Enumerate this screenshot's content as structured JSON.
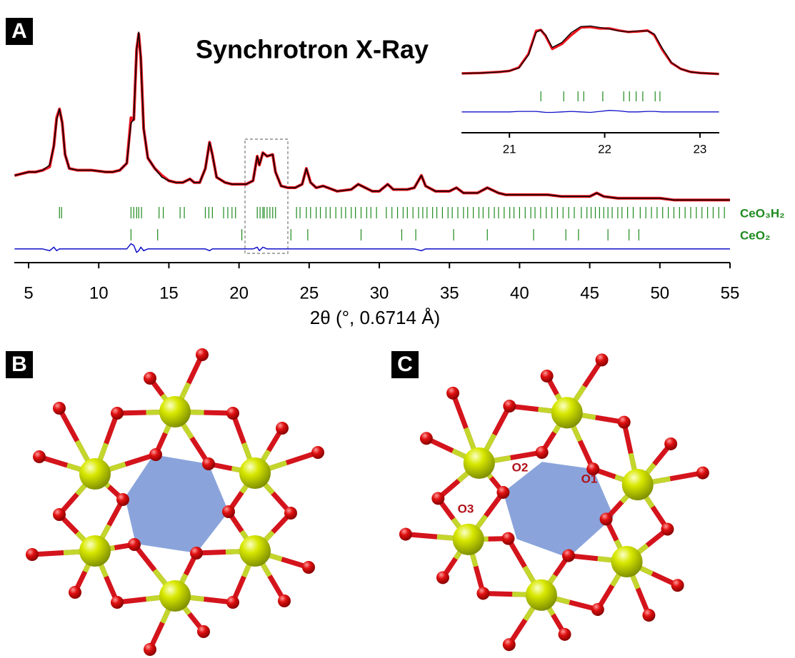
{
  "panel_labels": [
    "A",
    "B",
    "C"
  ],
  "structure_labels": [
    "O1",
    "O2",
    "O3"
  ],
  "chart_data": [
    {
      "type": "line",
      "title": "Synchrotron X-Ray",
      "x_label": "2θ (°, 0.6714 Å)",
      "xlim": [
        4,
        55
      ],
      "xticks": [
        5,
        10,
        15,
        20,
        25,
        30,
        35,
        40,
        45,
        50,
        55
      ],
      "ylim": [
        -30,
        100
      ],
      "x": [
        4,
        4.5,
        5,
        5.5,
        6,
        6.5,
        6.8,
        7.0,
        7.2,
        7.4,
        7.6,
        7.9,
        8.5,
        9.5,
        10.5,
        11,
        11.5,
        12.0,
        12.3,
        12.5,
        12.7,
        12.85,
        13.0,
        13.2,
        13.5,
        14,
        14.5,
        15,
        15.5,
        16,
        16.5,
        16.8,
        17.2,
        17.6,
        17.9,
        18.1,
        18.4,
        19,
        19.5,
        20,
        20.5,
        21,
        21.3,
        21.45,
        21.7,
        22,
        22.4,
        22.6,
        23,
        23.5,
        24,
        24.5,
        24.8,
        25.1,
        25.5,
        26,
        27,
        28,
        28.5,
        29,
        29.5,
        30,
        30.6,
        31,
        32,
        32.5,
        33,
        33.3,
        34,
        35,
        35.5,
        36,
        37,
        37.7,
        38.5,
        39,
        40,
        41,
        42,
        43,
        44,
        45,
        45.5,
        46,
        47,
        48,
        49,
        50,
        51,
        52,
        53,
        54,
        55
      ],
      "series": [
        {
          "color": "#e8141c",
          "values": [
            18,
            19,
            20,
            20,
            21,
            23,
            35,
            51,
            56,
            48,
            30,
            22,
            21,
            21,
            20,
            20,
            21,
            25,
            51,
            50,
            90,
            99,
            85,
            45,
            28,
            22,
            18,
            15,
            14,
            14,
            16,
            14,
            14,
            22,
            37,
            30,
            17,
            14,
            13,
            13,
            13,
            15,
            29,
            24,
            31,
            29,
            30,
            20,
            12,
            11,
            11,
            13,
            22,
            14,
            11,
            12,
            9,
            10,
            13,
            11,
            9,
            9,
            13,
            10,
            10,
            11,
            18,
            12,
            9,
            9,
            11,
            8,
            8,
            11,
            8,
            7,
            7,
            7,
            7,
            6,
            6,
            6,
            8,
            6,
            5,
            5,
            5,
            5,
            4,
            4,
            4,
            4,
            4
          ]
        },
        {
          "color": "#000000",
          "values": [
            18,
            19,
            20,
            20,
            21,
            24,
            35,
            50,
            56,
            48,
            30,
            22,
            21,
            21,
            20,
            20,
            21,
            25,
            48,
            50,
            90,
            100,
            85,
            45,
            28,
            22,
            17,
            15,
            14,
            14,
            16,
            14,
            14,
            22,
            37,
            30,
            17,
            14,
            13,
            13,
            13,
            15,
            29,
            24,
            31,
            29,
            30,
            20,
            12,
            11,
            11,
            13,
            22,
            14,
            11,
            12,
            9,
            10,
            13,
            11,
            9,
            9,
            13,
            10,
            10,
            11,
            18,
            12,
            9,
            9,
            11,
            8,
            8,
            11,
            8,
            7,
            7,
            7,
            7,
            6,
            6,
            6,
            8,
            6,
            5,
            5,
            5,
            5,
            4,
            4,
            4,
            4,
            4
          ]
        },
        {
          "color": "#1010c8",
          "values": [
            -24,
            -24,
            -24,
            -24,
            -24,
            -25,
            -23,
            -25,
            -24,
            -24,
            -24,
            -24,
            -24,
            -24,
            -24,
            -24,
            -24,
            -24,
            -21,
            -22,
            -26,
            -25,
            -23,
            -25,
            -24,
            -24,
            -24,
            -24,
            -24,
            -24,
            -24,
            -24,
            -24,
            -24,
            -25,
            -24,
            -24,
            -24,
            -24,
            -24,
            -24,
            -24,
            -23,
            -25,
            -23,
            -24,
            -24,
            -24,
            -24,
            -24,
            -24,
            -24,
            -24,
            -24,
            -24,
            -24,
            -24,
            -24,
            -24,
            -24,
            -24,
            -24,
            -24,
            -24,
            -24,
            -24,
            -25,
            -24,
            -24,
            -24,
            -24,
            -24,
            -24,
            -24,
            -24,
            -24,
            -24,
            -24,
            -24,
            -24,
            -24,
            -24,
            -24,
            -24,
            -24,
            -24,
            -24,
            -24,
            -24,
            -24,
            -24,
            -24,
            -24
          ]
        }
      ],
      "reflections": [
        {
          "name": "CeO₃H₂",
          "color": "#1e8a1e",
          "positions": [
            7.2,
            7.35,
            12.3,
            12.5,
            12.7,
            12.85,
            13.05,
            14.3,
            14.6,
            15.8,
            16.1,
            17.6,
            17.85,
            18.1,
            18.9,
            19.2,
            19.5,
            19.75,
            21.3,
            21.5,
            21.7,
            21.8,
            22.0,
            22.2,
            22.4,
            22.6,
            24.1,
            24.35,
            24.8,
            25.1,
            25.5,
            25.8,
            26.2,
            26.5,
            26.9,
            27.3,
            27.6,
            28.0,
            28.3,
            28.7,
            29.1,
            29.4,
            29.8,
            30.5,
            30.9,
            31.3,
            31.7,
            32.0,
            32.4,
            32.8,
            33.1,
            33.4,
            33.8,
            34.1,
            34.5,
            34.9,
            35.2,
            35.6,
            36.0,
            36.3,
            36.7,
            37.1,
            37.4,
            37.8,
            38.2,
            38.5,
            38.9,
            39.3,
            39.6,
            40.0,
            40.4,
            40.8,
            41.1,
            41.5,
            41.9,
            42.3,
            42.7,
            43.1,
            43.5,
            43.9,
            44.4,
            44.8,
            45.1,
            45.4,
            45.7,
            46.0,
            46.3,
            46.6,
            47.0,
            47.3,
            47.7,
            48.1,
            48.6,
            49.0,
            49.4,
            49.8,
            50.2,
            50.6,
            51.0,
            51.4,
            51.8,
            52.2,
            52.6,
            53.0,
            53.4,
            53.8,
            54.2,
            54.6
          ]
        },
        {
          "name": "CeO₂",
          "color": "#1e8a1e",
          "positions": [
            12.3,
            14.2,
            20.2,
            23.7,
            24.9,
            28.7,
            31.6,
            32.6,
            35.3,
            37.7,
            41.0,
            43.3,
            44.2,
            46.3,
            47.8,
            48.5
          ]
        }
      ]
    },
    {
      "type": "line",
      "xlim": [
        20.5,
        23.2
      ],
      "xticks": [
        21,
        22,
        23
      ],
      "ylim": [
        -80,
        100
      ],
      "x": [
        20.5,
        20.7,
        20.9,
        21.0,
        21.1,
        21.2,
        21.28,
        21.33,
        21.38,
        21.45,
        21.55,
        21.65,
        21.75,
        21.85,
        21.95,
        22.05,
        22.15,
        22.25,
        22.35,
        22.45,
        22.52,
        22.6,
        22.7,
        22.8,
        22.9,
        23.0,
        23.2
      ],
      "series": [
        {
          "color": "#e8141c",
          "values": [
            3,
            4,
            6,
            8,
            15,
            42,
            88,
            90,
            78,
            52,
            62,
            80,
            95,
            96,
            93,
            93,
            89,
            86,
            87,
            89,
            80,
            52,
            24,
            12,
            6,
            4,
            2
          ]
        },
        {
          "color": "#000000",
          "values": [
            3,
            4,
            6,
            8,
            14,
            40,
            85,
            90,
            80,
            55,
            65,
            85,
            97,
            98,
            95,
            92,
            88,
            86,
            88,
            88,
            82,
            55,
            25,
            12,
            6,
            4,
            2
          ]
        },
        {
          "color": "#1010c8",
          "values": [
            -74,
            -74,
            -74,
            -74,
            -73,
            -73,
            -73,
            -74,
            -75,
            -75,
            -74,
            -73,
            -74,
            -75,
            -73,
            -71,
            -72,
            -74,
            -74,
            -73,
            -73,
            -74,
            -74,
            -74,
            -74,
            -74,
            -74
          ]
        }
      ],
      "reflections": [
        {
          "color": "#1e8a1e",
          "positions": [
            21.33,
            21.57,
            21.72,
            21.78,
            21.98,
            22.2,
            22.26,
            22.33,
            22.4,
            22.53,
            22.58
          ]
        }
      ]
    }
  ]
}
